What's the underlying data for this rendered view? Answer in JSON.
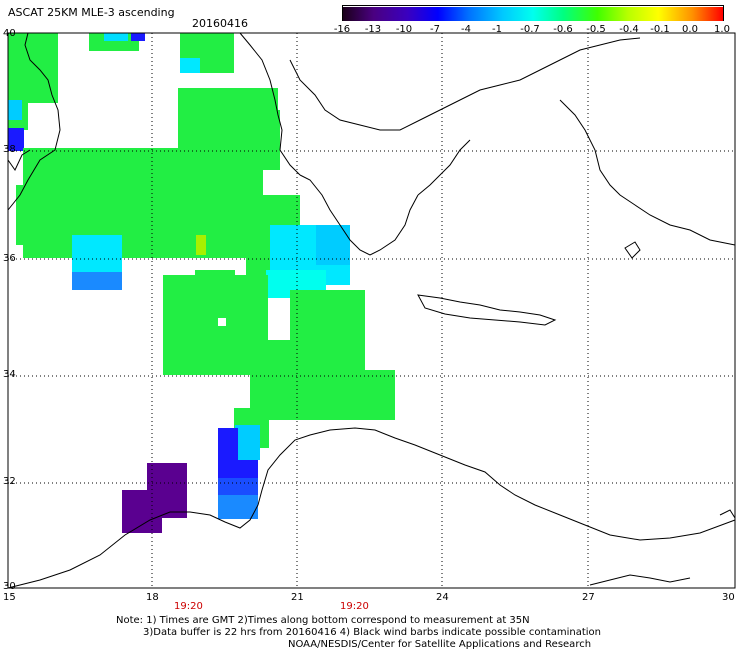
{
  "header": {
    "title": "ASCAT 25KM MLE-3 ascending",
    "date": "20160416"
  },
  "colorbar": {
    "labels": [
      "-16",
      "-13",
      "-10",
      "-7",
      "-4",
      "-1",
      "-0.7",
      "-0.6",
      "-0.5",
      "-0.4",
      "-0.1",
      "0.0",
      "1.0"
    ],
    "colors": [
      "#2b0040",
      "#4a0080",
      "#3a00c0",
      "#0000ff",
      "#0060ff",
      "#00b0ff",
      "#00ffff",
      "#00ff90",
      "#40ff00",
      "#b0ff00",
      "#ffff00",
      "#ff9000",
      "#ff0000"
    ]
  },
  "axes": {
    "lat_labels": [
      "40",
      "38",
      "36",
      "34",
      "32",
      "30"
    ],
    "lon_labels": [
      "15",
      "18",
      "21",
      "24",
      "27",
      "30"
    ],
    "lat_range": [
      30,
      40
    ],
    "lon_range": [
      15,
      30
    ]
  },
  "times": [
    "19:20",
    "19:20"
  ],
  "notes": {
    "line1": "Note: 1) Times are GMT 2)Times along bottom correspond to measurement at 35N",
    "line2": "3)Data buffer is 22 hrs from 20160416 4) Black wind barbs indicate possible contamination",
    "line3": "NOAA/NESDIS/Center for Satellite Applications and Research"
  },
  "colors": {
    "green": "#22ee44",
    "cyan": "#00e8ff",
    "blue": "#1a1aff",
    "purple": "#5a0090"
  }
}
